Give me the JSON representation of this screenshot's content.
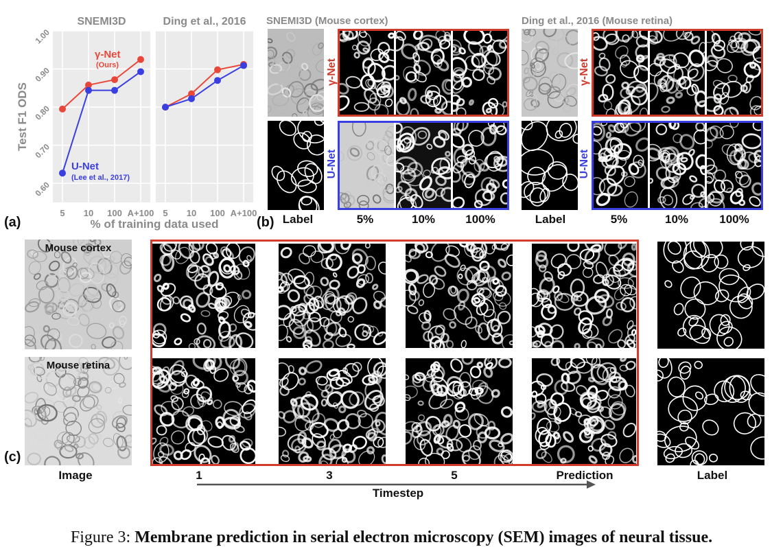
{
  "panel_a": {
    "letter": "(a)",
    "y_axis_label": "Test F1 ODS",
    "x_axis_label": "% of training data used",
    "y_ticks": [
      "1.00",
      "0.90",
      "0.80",
      "0.70",
      "0.60"
    ],
    "x_ticks": [
      "5",
      "10",
      "100",
      "A+100"
    ],
    "series_labels": {
      "gamma": "γ-Net",
      "gamma_sub": "(Ours)",
      "unet": "U-Net",
      "unet_sub": "(Lee et al., 2017)"
    },
    "colors": {
      "gamma": "#e8483a",
      "unet": "#3a3fe0",
      "bg": "#ebebeb"
    }
  },
  "chart_data": [
    {
      "type": "line",
      "title": "SNEMI3D",
      "ylabel": "Test F1 ODS",
      "xlabel": "% of training data used",
      "categories": [
        "5",
        "10",
        "100",
        "A+100"
      ],
      "ylim": [
        0.55,
        1.0
      ],
      "series": [
        {
          "name": "γ-Net",
          "values": [
            0.795,
            0.858,
            0.872,
            0.925
          ]
        },
        {
          "name": "U-Net",
          "values": [
            0.627,
            0.844,
            0.844,
            0.893
          ]
        }
      ]
    },
    {
      "type": "line",
      "title": "Ding et al., 2016",
      "ylabel": "Test F1 ODS",
      "xlabel": "% of training data used",
      "categories": [
        "5",
        "10",
        "100",
        "A+100"
      ],
      "ylim": [
        0.55,
        1.0
      ],
      "series": [
        {
          "name": "γ-Net",
          "values": [
            0.8,
            0.835,
            0.898,
            0.912
          ]
        },
        {
          "name": "U-Net",
          "values": [
            0.8,
            0.822,
            0.87,
            0.909
          ]
        }
      ]
    }
  ],
  "panel_b": {
    "letter": "(b)",
    "title_left": "SNEMI3D (Mouse cortex)",
    "title_right": "Ding et al., 2016 (Mouse retina)",
    "row_gamma": "γ-Net",
    "row_unet": "U-Net",
    "col_labels": [
      "Label",
      "5%",
      "10%",
      "100%"
    ]
  },
  "panel_c": {
    "letter": "(c)",
    "image_titles": [
      "Mouse cortex",
      "Mouse retina"
    ],
    "col_image": "Image",
    "col_timesteps": [
      "1",
      "3",
      "5",
      "Prediction"
    ],
    "col_label": "Label",
    "axis_label": "Timestep"
  },
  "caption": {
    "prefix": "Figure 3: ",
    "bold": "Membrane prediction in serial electron microscopy (SEM) images of neural tissue."
  }
}
